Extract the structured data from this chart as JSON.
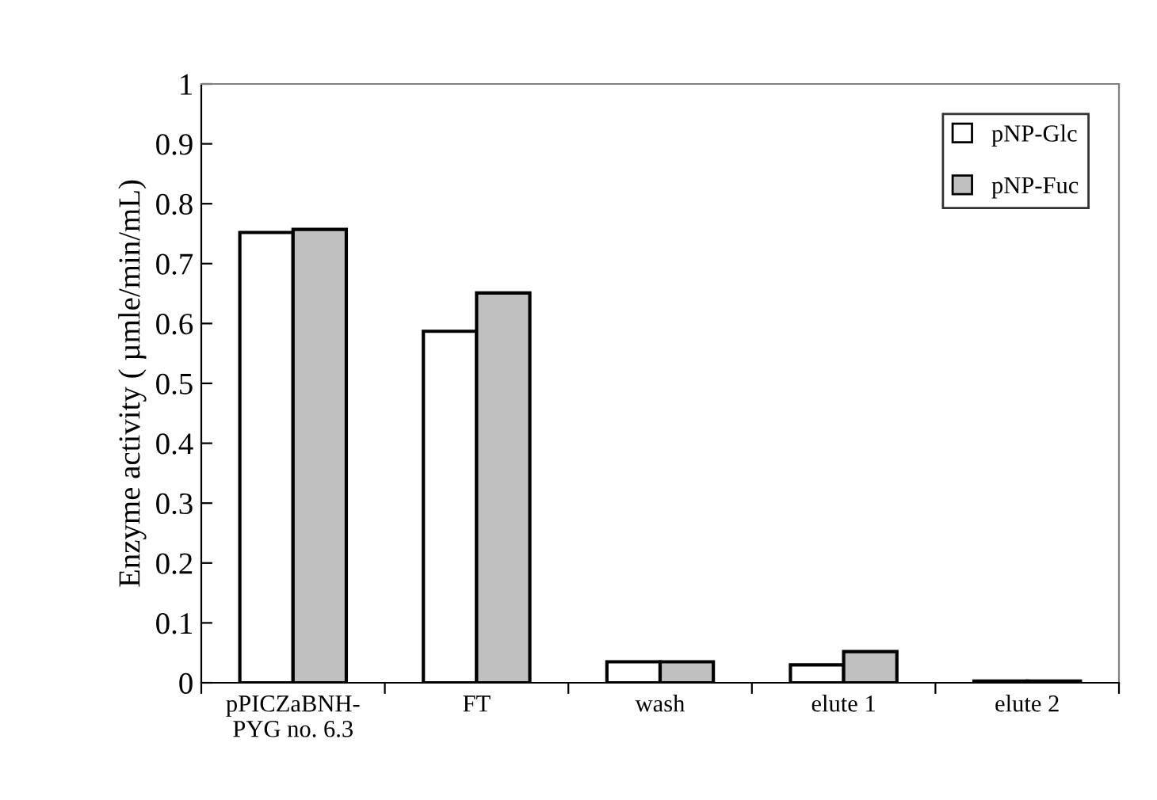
{
  "chart_data": {
    "type": "bar",
    "ylabel": "Enzyme activity ( µmle/min/mL)",
    "categories": [
      "pPICZaBNH-\nPYG no. 6.3",
      "FT",
      "wash",
      "elute 1",
      "elute 2"
    ],
    "series": [
      {
        "name": "pNP-Glc",
        "color": "#ffffff",
        "values": [
          0.752,
          0.587,
          0.035,
          0.03,
          0.003
        ]
      },
      {
        "name": "pNP-Fuc",
        "color": "#c0c0c0",
        "values": [
          0.757,
          0.651,
          0.035,
          0.052,
          0.003
        ]
      }
    ],
    "ylim": [
      0,
      1
    ],
    "yticks": [
      0,
      0.1,
      0.2,
      0.3,
      0.4,
      0.5,
      0.6,
      0.7,
      0.8,
      0.9,
      1
    ],
    "grid": false,
    "legend": "top right"
  }
}
